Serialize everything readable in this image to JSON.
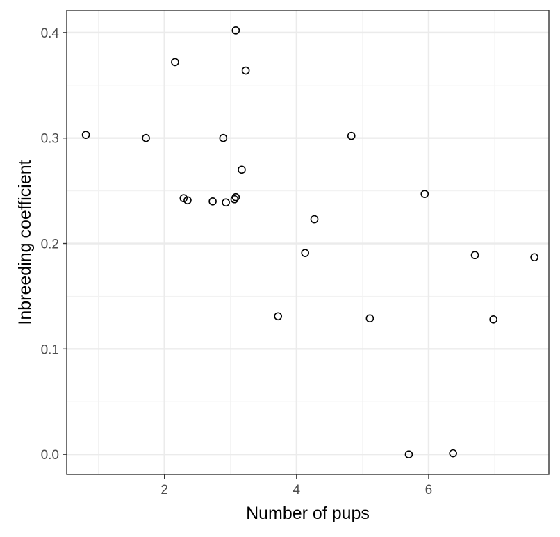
{
  "chart_data": {
    "type": "scatter",
    "title": "",
    "xlabel": "Number of pups",
    "ylabel": "Inbreeding coefficient",
    "xlim": [
      0.52,
      7.82
    ],
    "ylim": [
      -0.019,
      0.421
    ],
    "grid": true,
    "legend": "none",
    "x_ticks": [
      2,
      4,
      6
    ],
    "x_tick_labels": [
      "2",
      "4",
      "6"
    ],
    "x_minor_ticks": [
      1,
      3,
      5,
      7
    ],
    "y_ticks": [
      0.0,
      0.1,
      0.2,
      0.3,
      0.4
    ],
    "y_tick_labels": [
      "0.0",
      "0.1",
      "0.2",
      "0.3",
      "0.4"
    ],
    "y_minor_ticks": [
      0.05,
      0.15,
      0.25,
      0.35
    ],
    "points": [
      {
        "x": 0.81,
        "y": 0.303
      },
      {
        "x": 1.72,
        "y": 0.3
      },
      {
        "x": 2.16,
        "y": 0.372
      },
      {
        "x": 2.29,
        "y": 0.243
      },
      {
        "x": 2.35,
        "y": 0.241
      },
      {
        "x": 2.73,
        "y": 0.24
      },
      {
        "x": 2.89,
        "y": 0.3
      },
      {
        "x": 2.93,
        "y": 0.239
      },
      {
        "x": 3.06,
        "y": 0.242
      },
      {
        "x": 3.08,
        "y": 0.244
      },
      {
        "x": 3.08,
        "y": 0.402
      },
      {
        "x": 3.17,
        "y": 0.27
      },
      {
        "x": 3.23,
        "y": 0.364
      },
      {
        "x": 3.72,
        "y": 0.131
      },
      {
        "x": 4.13,
        "y": 0.191
      },
      {
        "x": 4.27,
        "y": 0.223
      },
      {
        "x": 4.83,
        "y": 0.302
      },
      {
        "x": 5.11,
        "y": 0.129
      },
      {
        "x": 5.7,
        "y": 0.0
      },
      {
        "x": 5.94,
        "y": 0.247
      },
      {
        "x": 6.37,
        "y": 0.001
      },
      {
        "x": 6.7,
        "y": 0.189
      },
      {
        "x": 6.98,
        "y": 0.128
      },
      {
        "x": 7.6,
        "y": 0.187
      }
    ],
    "colors": {
      "panel_border": "#333333",
      "major_grid": "#ebebeb",
      "minor_grid": "#f2f2f2",
      "point_stroke": "#000000",
      "tick_text": "#4d4d4d",
      "axis_title": "#000000"
    }
  }
}
